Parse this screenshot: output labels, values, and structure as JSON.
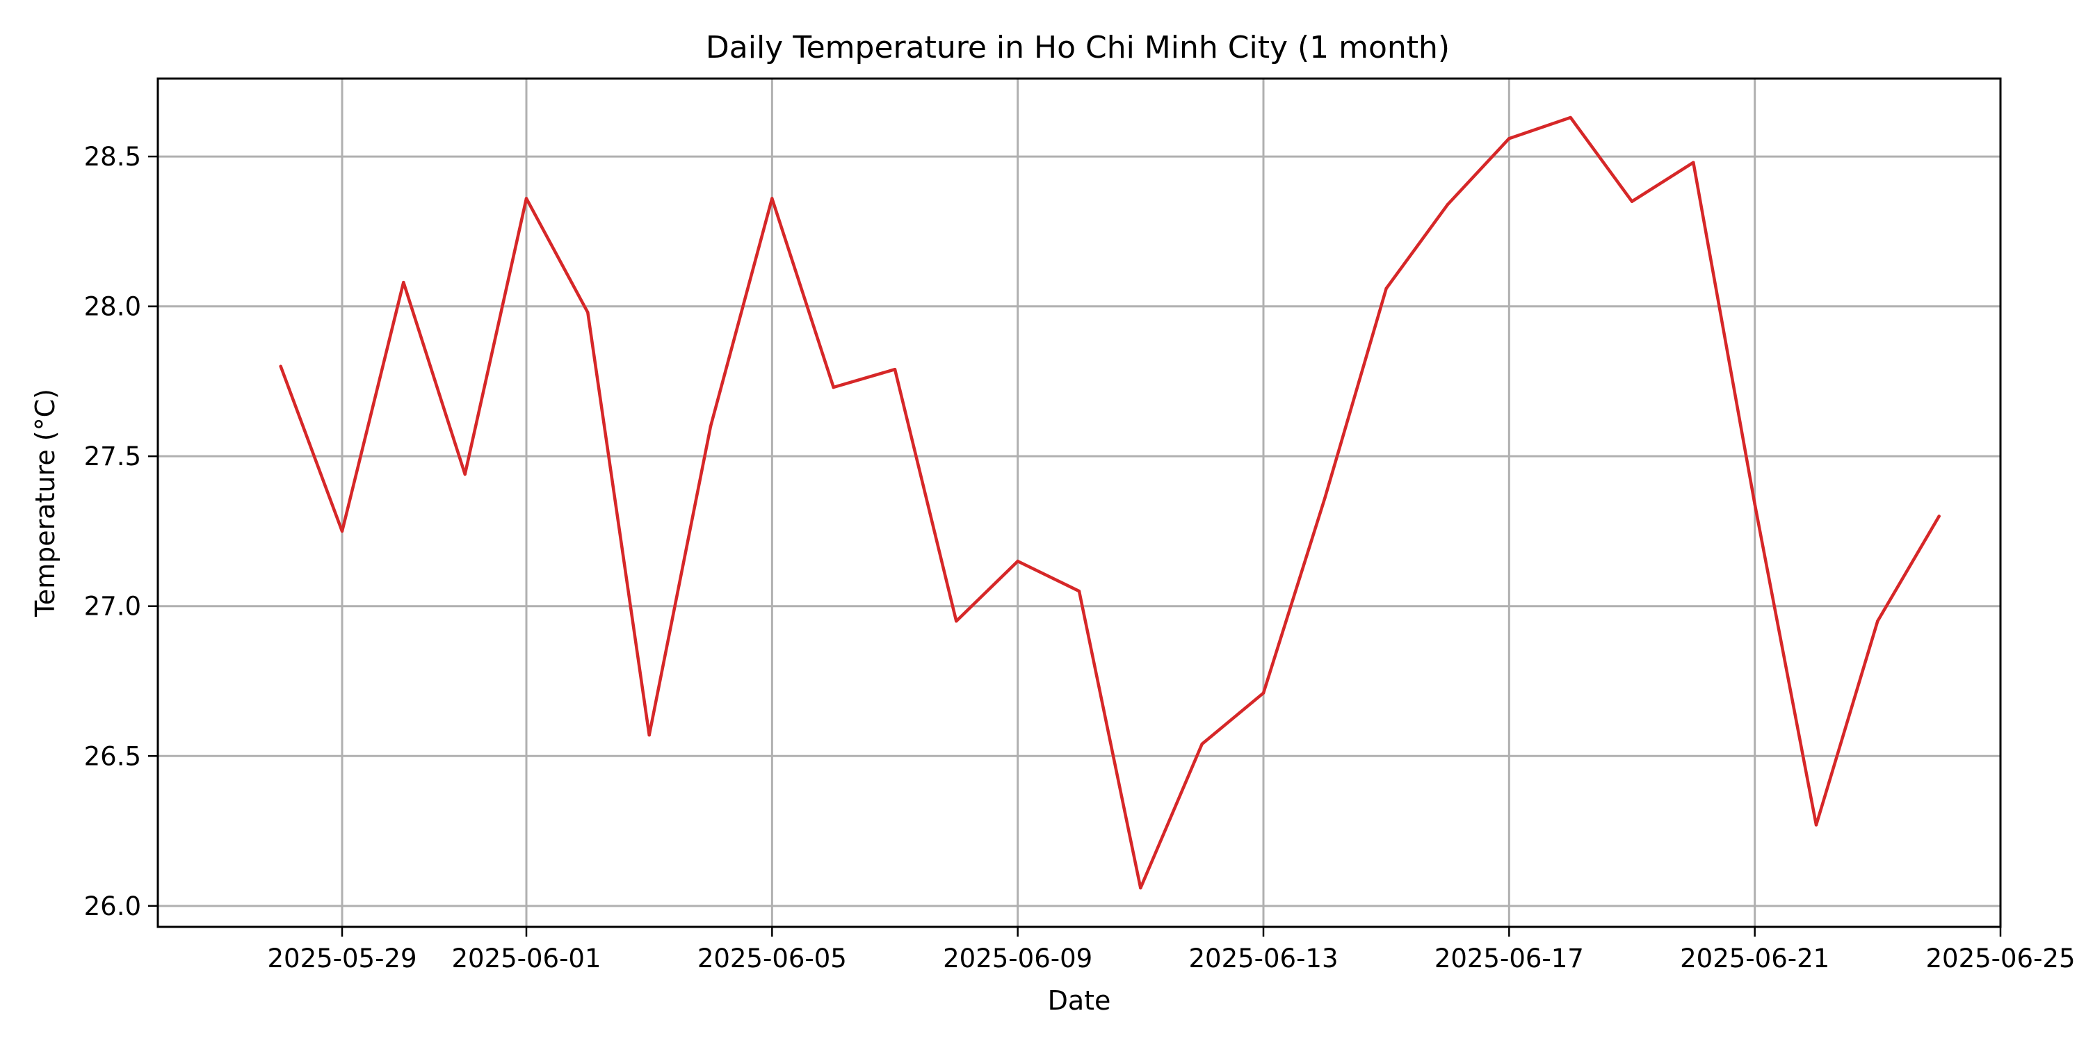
{
  "chart_data": {
    "type": "line",
    "title": "Daily Temperature in Ho Chi Minh City (1 month)",
    "xlabel": "Date",
    "ylabel": "Temperature (°C)",
    "grid": true,
    "x_type": "date",
    "xlim": [
      "2025-05-26",
      "2025-06-25"
    ],
    "ylim": [
      25.93,
      28.76
    ],
    "x_ticks": [
      "2025-05-29",
      "2025-06-01",
      "2025-06-05",
      "2025-06-09",
      "2025-06-13",
      "2025-06-17",
      "2025-06-21",
      "2025-06-25"
    ],
    "y_ticks": [
      "26.0",
      "26.5",
      "27.0",
      "27.5",
      "28.0",
      "28.5"
    ],
    "series": [
      {
        "color": "#d62728",
        "x": [
          "2025-05-28",
          "2025-05-29",
          "2025-05-30",
          "2025-05-31",
          "2025-06-01",
          "2025-06-02",
          "2025-06-03",
          "2025-06-04",
          "2025-06-05",
          "2025-06-06",
          "2025-06-07",
          "2025-06-08",
          "2025-06-09",
          "2025-06-10",
          "2025-06-11",
          "2025-06-12",
          "2025-06-13",
          "2025-06-14",
          "2025-06-15",
          "2025-06-16",
          "2025-06-17",
          "2025-06-18",
          "2025-06-19",
          "2025-06-20",
          "2025-06-21",
          "2025-06-22",
          "2025-06-23",
          "2025-06-24"
        ],
        "y": [
          27.8,
          27.25,
          28.08,
          27.44,
          28.36,
          27.98,
          26.57,
          27.6,
          28.36,
          27.73,
          27.79,
          26.95,
          27.15,
          27.05,
          26.06,
          26.54,
          26.71,
          27.36,
          28.06,
          28.34,
          28.56,
          28.63,
          28.35,
          28.48,
          27.34,
          26.27,
          26.95,
          27.3
        ]
      }
    ]
  }
}
